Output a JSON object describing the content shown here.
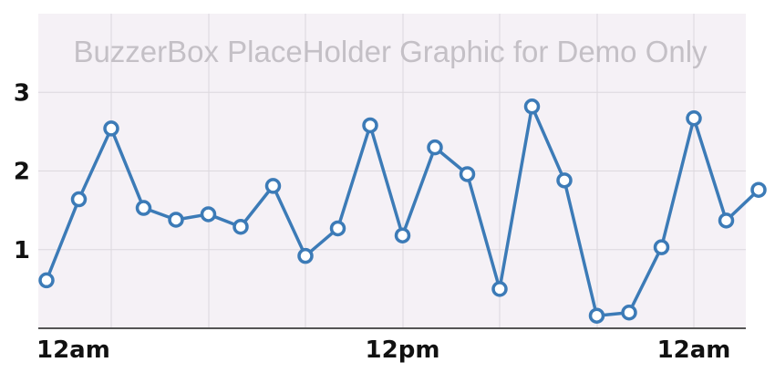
{
  "watermark": "BuzzerBox PlaceHolder Graphic for Demo Only",
  "colors": {
    "plot_background": "#f5f1f6",
    "series": "#3c7bb7",
    "grid": "#dcd8dd"
  },
  "chart_data": {
    "type": "line",
    "title": "",
    "xlabel": "",
    "ylabel": "",
    "x_tick_labels": [
      "12am",
      "12pm",
      "12am"
    ],
    "x_tick_indices": [
      2,
      11,
      20
    ],
    "y_ticks": [
      1,
      2,
      3
    ],
    "ylim": [
      0.0,
      4.0
    ],
    "grid": true,
    "marker": "open-circle",
    "series": [
      {
        "values": [
          0.61,
          1.64,
          2.54,
          1.53,
          1.38,
          1.45,
          1.29,
          1.81,
          0.92,
          1.27,
          2.58,
          1.18,
          2.3,
          1.96,
          0.5,
          2.82,
          1.88,
          0.16,
          0.2,
          1.03,
          2.67,
          1.37,
          1.76
        ]
      }
    ]
  }
}
